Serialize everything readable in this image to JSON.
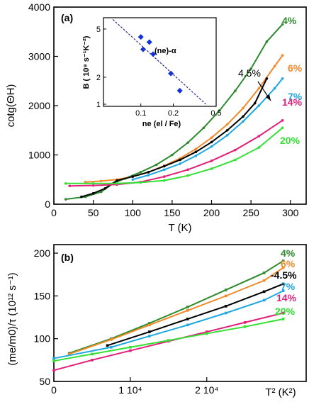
{
  "chart_data": [
    {
      "type": "line",
      "panel_label": "(a)",
      "xlabel": "T (K)",
      "ylabel": "cotg(ΘH)",
      "xlim": [
        0,
        320
      ],
      "ylim": [
        0,
        4000
      ],
      "xticks": [
        "0",
        "50",
        "100",
        "150",
        "200",
        "250",
        "300"
      ],
      "yticks": [
        "0",
        "1000",
        "2000",
        "3000",
        "4000"
      ],
      "series": [
        {
          "name": "4%",
          "color": "#2e8b2e",
          "x": [
            15,
            40,
            60,
            75,
            90,
            110,
            130,
            150,
            170,
            190,
            210,
            230,
            250,
            270,
            290
          ],
          "y": [
            100,
            150,
            250,
            420,
            520,
            650,
            800,
            1000,
            1250,
            1550,
            1900,
            2300,
            2750,
            3300,
            3650
          ]
        },
        {
          "name": "6%",
          "color": "#f08a2a",
          "x": [
            40,
            60,
            80,
            100,
            120,
            140,
            160,
            180,
            200,
            220,
            240,
            260,
            280,
            290
          ],
          "y": [
            450,
            470,
            500,
            560,
            650,
            780,
            930,
            1120,
            1350,
            1620,
            1950,
            2350,
            2800,
            3020
          ]
        },
        {
          "name": "4.5%",
          "color": "#000000",
          "x": [
            35,
            50,
            65,
            80,
            100,
            120,
            140,
            160,
            180,
            200,
            220,
            240,
            255,
            270
          ],
          "y": [
            150,
            220,
            320,
            480,
            560,
            650,
            770,
            900,
            1060,
            1260,
            1500,
            1780,
            2050,
            2550
          ]
        },
        {
          "name": "7%",
          "color": "#1fa8e0",
          "x": [
            100,
            120,
            140,
            160,
            180,
            200,
            220,
            240,
            260,
            280,
            290
          ],
          "y": [
            500,
            590,
            700,
            820,
            980,
            1170,
            1400,
            1680,
            2000,
            2350,
            2550
          ]
        },
        {
          "name": "14%",
          "color": "#e0207a",
          "x": [
            20,
            50,
            80,
            110,
            140,
            170,
            200,
            230,
            260,
            290
          ],
          "y": [
            370,
            380,
            400,
            450,
            560,
            700,
            880,
            1100,
            1380,
            1700
          ]
        },
        {
          "name": "20%",
          "color": "#33e033",
          "x": [
            15,
            50,
            80,
            110,
            140,
            170,
            200,
            230,
            260,
            290
          ],
          "y": [
            420,
            420,
            420,
            440,
            480,
            580,
            720,
            900,
            1150,
            1550
          ]
        }
      ],
      "annotation": "4.5%",
      "inset": {
        "type": "scatter",
        "xlabel": "ne (el / Fe)",
        "ylabel": "B ( 10⁹ s⁻¹K⁻²)",
        "annotation": "(ne)-α",
        "xscale": "log",
        "yscale": "log",
        "xlim": [
          0.045,
          0.5
        ],
        "ylim": [
          1.15,
          6.2
        ],
        "xticks": [
          "0.1",
          "0.2",
          "0.5"
        ],
        "yticks": [
          "1",
          "2",
          "5"
        ],
        "points": [
          {
            "x": 0.1,
            "y": 4.3
          },
          {
            "x": 0.105,
            "y": 3.4
          },
          {
            "x": 0.12,
            "y": 3.9
          },
          {
            "x": 0.13,
            "y": 3.1
          },
          {
            "x": 0.19,
            "y": 2.15
          },
          {
            "x": 0.23,
            "y": 1.55
          }
        ],
        "fit_line": {
          "x": [
            0.055,
            0.4
          ],
          "y": [
            6.0,
            1.2
          ]
        }
      }
    },
    {
      "type": "line",
      "panel_label": "(b)",
      "xlabel": "T² (K²)",
      "ylabel": "(me/m0)/τ (10¹² s⁻¹)",
      "xlim": [
        0,
        33000
      ],
      "ylim": [
        50,
        210
      ],
      "xticks": [
        "0",
        "1 10⁴",
        "2 10⁴"
      ],
      "yticks": [
        "50",
        "100",
        "150",
        "200"
      ],
      "series": [
        {
          "name": "4%",
          "color": "#2e8b2e",
          "x": [
            2000,
            7500,
            12500,
            17500,
            22500,
            27500,
            30000
          ],
          "y": [
            83,
            100,
            118,
            137,
            157,
            177,
            191
          ]
        },
        {
          "name": "6%",
          "color": "#f08a2a",
          "x": [
            2000,
            7500,
            12500,
            17500,
            22500,
            27500,
            30000
          ],
          "y": [
            82,
            99,
            116,
            133,
            150,
            168,
            183
          ]
        },
        {
          "name": "4.5%",
          "color": "#000000",
          "x": [
            7000,
            12500,
            17500,
            22500,
            27500,
            30000
          ],
          "y": [
            92,
            108,
            123,
            138,
            155,
            164
          ]
        },
        {
          "name": "7%",
          "color": "#1fa8e0",
          "x": [
            0,
            7500,
            12500,
            17500,
            22500,
            27500,
            30000
          ],
          "y": [
            77,
            90,
            103,
            116,
            130,
            145,
            156
          ]
        },
        {
          "name": "14%",
          "color": "#e0207a",
          "x": [
            0,
            5000,
            10000,
            15000,
            20000,
            25000,
            30000
          ],
          "y": [
            63,
            75,
            86,
            97,
            108,
            119,
            130
          ]
        },
        {
          "name": "20%",
          "color": "#33e033",
          "x": [
            0,
            5000,
            10000,
            15000,
            20000,
            25000,
            30000
          ],
          "y": [
            74,
            82,
            90,
            98,
            106,
            114,
            123
          ]
        }
      ]
    }
  ]
}
